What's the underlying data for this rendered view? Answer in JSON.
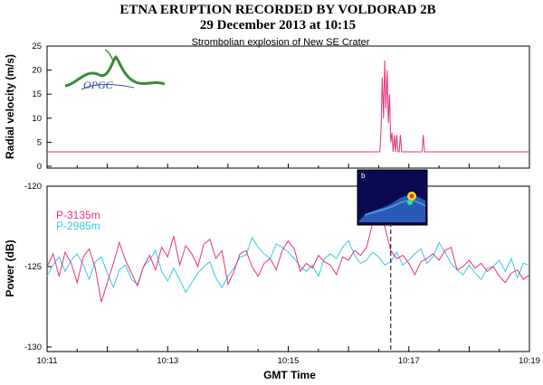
{
  "title": "ETNA ERUPTION RECORDED BY VOLDORAD 2B",
  "subtitle": "29 December 2013 at 10:15",
  "note": "Strombolian explosion of New SE Crater",
  "logo": {
    "text": "OPGC",
    "icon": "opgc-volcano-logo"
  },
  "inset": {
    "label": "b",
    "icon": "thermal-camera-image"
  },
  "colors": {
    "p3135": "#e8307a",
    "p2985": "#36c8e8",
    "velocity": "#e8307a",
    "frame": "#000000"
  },
  "chart_data": [
    {
      "type": "line",
      "ylabel": "Radial velocity (m/s)",
      "ylim": [
        0,
        25
      ],
      "yticks": [
        "0",
        "5",
        "10",
        "15",
        "20",
        "25"
      ],
      "xlim": [
        0,
        8
      ],
      "series": [
        {
          "x": [
            0,
            5.0,
            5.02,
            5.04,
            5.06,
            5.08,
            5.1,
            5.12,
            5.14,
            5.16,
            5.18,
            5.2,
            5.22,
            5.24,
            5.26,
            5.28,
            5.3,
            5.32,
            5.34,
            5.36,
            5.38,
            5.4,
            5.42,
            5.44,
            5.46,
            5.48,
            5.5,
            5.52,
            5.54,
            5.56,
            5.58,
            5.6,
            5.62,
            5.64,
            5.66,
            5.68,
            5.7,
            5.72,
            5.74,
            5.76,
            5.78,
            5.8,
            5.82,
            5.84,
            5.86,
            5.88,
            5.9,
            5.92,
            5.94,
            5.96,
            5.98,
            6.0,
            6.02,
            6.04,
            6.06,
            6.08,
            6.1,
            6.12,
            6.14,
            6.16,
            6.18,
            6.2,
            6.22,
            6.24,
            6.26,
            6.28,
            6.3,
            8
          ],
          "y": [
            3,
            3,
            3,
            3,
            3,
            3,
            3,
            3,
            3,
            3,
            3,
            3,
            3,
            3,
            3,
            3,
            3,
            3,
            3,
            3,
            3,
            3,
            3,
            3,
            3,
            3,
            3,
            3,
            8,
            18.5,
            10,
            22,
            12,
            20,
            9,
            15,
            5,
            7,
            3,
            6.5,
            3,
            6.5,
            3,
            3,
            6.5,
            3,
            3,
            3,
            3,
            3,
            3,
            3,
            3,
            3,
            3,
            3,
            3,
            3,
            3,
            3,
            3,
            3,
            3,
            6.5,
            3,
            3,
            3,
            3
          ]
        }
      ]
    },
    {
      "type": "line",
      "xlabel": "GMT Time",
      "ylabel": "Power (dB)",
      "ylim": [
        -130,
        -120
      ],
      "yticks": [
        "-120",
        "-125",
        "-130"
      ],
      "xlim": [
        0,
        8
      ],
      "xticks": [
        "10:11",
        "10:13",
        "10:15",
        "10:17",
        "10:19"
      ],
      "xtick_pos": [
        0,
        2,
        4,
        6,
        8
      ],
      "event_x": 5.7,
      "series": [
        {
          "name": "P-3135m",
          "x": [
            0,
            0.1,
            0.2,
            0.3,
            0.4,
            0.5,
            0.6,
            0.7,
            0.8,
            0.9,
            1.0,
            1.1,
            1.2,
            1.3,
            1.4,
            1.5,
            1.6,
            1.7,
            1.8,
            1.9,
            2.0,
            2.1,
            2.2,
            2.3,
            2.4,
            2.5,
            2.6,
            2.7,
            2.8,
            2.9,
            3.0,
            3.1,
            3.2,
            3.3,
            3.4,
            3.5,
            3.6,
            3.7,
            3.8,
            3.9,
            4.0,
            4.1,
            4.2,
            4.3,
            4.4,
            4.5,
            4.6,
            4.7,
            4.8,
            4.9,
            5.0,
            5.1,
            5.2,
            5.3,
            5.4,
            5.5,
            5.6,
            5.7,
            5.8,
            5.9,
            6.0,
            6.1,
            6.2,
            6.3,
            6.4,
            6.5,
            6.6,
            6.7,
            6.8,
            6.9,
            7.0,
            7.1,
            7.2,
            7.3,
            7.4,
            7.5,
            7.6,
            7.7,
            7.8,
            7.9,
            8.0
          ],
          "y": [
            -125,
            -124.2,
            -125.6,
            -124.1,
            -124.8,
            -126.0,
            -124.4,
            -123.9,
            -125.1,
            -127.2,
            -126.0,
            -124.8,
            -123.5,
            -124.6,
            -125.4,
            -126.2,
            -125.0,
            -124.3,
            -125.2,
            -123.8,
            -124.4,
            -123.1,
            -124.9,
            -123.7,
            -124.2,
            -125.0,
            -123.6,
            -123.3,
            -124.5,
            -124.0,
            -126.1,
            -125.3,
            -124.2,
            -124.0,
            -125.0,
            -125.6,
            -124.8,
            -124.5,
            -125.2,
            -124.0,
            -123.4,
            -123.9,
            -125.3,
            -124.8,
            -125.1,
            -124.3,
            -124.7,
            -124.9,
            -125.5,
            -124.4,
            -124.6,
            -124.0,
            -124.3,
            -123.8,
            -122.3,
            -121.0,
            -122.5,
            -124.0,
            -124.5,
            -124.3,
            -124.8,
            -125.5,
            -124.7,
            -124.5,
            -124.2,
            -124.6,
            -124.0,
            -123.8,
            -125.2,
            -125.0,
            -124.6,
            -125.1,
            -124.8,
            -125.3,
            -125.0,
            -125.6,
            -126.0,
            -125.4,
            -125.2,
            -125.8,
            -125.5
          ]
        },
        {
          "name": "P-2985m",
          "x": [
            0,
            0.1,
            0.2,
            0.3,
            0.4,
            0.5,
            0.6,
            0.7,
            0.8,
            0.9,
            1.0,
            1.1,
            1.2,
            1.3,
            1.4,
            1.5,
            1.6,
            1.7,
            1.8,
            1.9,
            2.0,
            2.1,
            2.2,
            2.3,
            2.4,
            2.5,
            2.6,
            2.7,
            2.8,
            2.9,
            3.0,
            3.1,
            3.2,
            3.3,
            3.4,
            3.5,
            3.6,
            3.7,
            3.8,
            3.9,
            4.0,
            4.1,
            4.2,
            4.3,
            4.4,
            4.5,
            4.6,
            4.7,
            4.8,
            4.9,
            5.0,
            5.1,
            5.2,
            5.3,
            5.4,
            5.5,
            5.6,
            5.7,
            5.8,
            5.9,
            6.0,
            6.1,
            6.2,
            6.3,
            6.4,
            6.5,
            6.6,
            6.7,
            6.8,
            6.9,
            7.0,
            7.1,
            7.2,
            7.3,
            7.4,
            7.5,
            7.6,
            7.7,
            7.8,
            7.9,
            8.0
          ],
          "y": [
            -125.6,
            -124.9,
            -124.4,
            -125.3,
            -124.6,
            -124.2,
            -124.9,
            -125.8,
            -124.7,
            -124.4,
            -125.4,
            -126.3,
            -125.2,
            -124.9,
            -125.8,
            -126.1,
            -125.0,
            -124.6,
            -124.0,
            -125.3,
            -125.9,
            -125.1,
            -125.8,
            -126.6,
            -126.0,
            -125.4,
            -125.0,
            -124.7,
            -125.7,
            -126.3,
            -125.6,
            -125.1,
            -124.4,
            -124.3,
            -123.2,
            -123.8,
            -124.2,
            -124.5,
            -123.6,
            -123.8,
            -124.1,
            -124.5,
            -125.0,
            -125.3,
            -124.9,
            -125.6,
            -124.5,
            -124.2,
            -124.5,
            -123.8,
            -123.4,
            -124.3,
            -124.8,
            -124.6,
            -124.1,
            -124.4,
            -124.9,
            -124.7,
            -124.1,
            -124.9,
            -124.6,
            -124.2,
            -123.9,
            -124.8,
            -124.4,
            -123.5,
            -124.1,
            -124.8,
            -125.2,
            -125.5,
            -124.9,
            -125.4,
            -125.8,
            -125.1,
            -125.0,
            -124.6,
            -125.3,
            -124.5,
            -125.7,
            -124.8,
            -124.9
          ]
        }
      ]
    }
  ]
}
